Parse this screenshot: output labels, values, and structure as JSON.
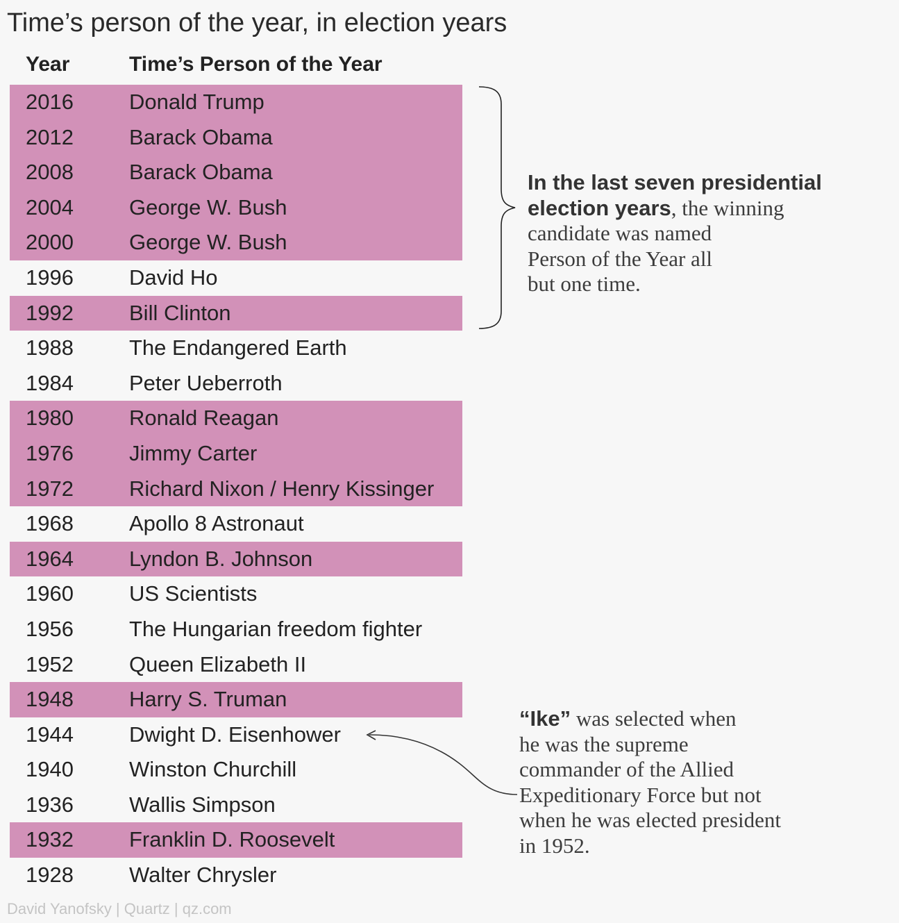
{
  "title": "Time’s person of the year, in election years",
  "source": "David Yanofsky | Quartz | qz.com",
  "colors": {
    "highlight": "#d291b8",
    "background": "#f7f7f7",
    "text": "#222222"
  },
  "chart_data": {
    "type": "table",
    "title": "Time’s person of the year, in election years",
    "columns": [
      "Year",
      "Time’s Person of the Year"
    ],
    "highlight_meaning": "winning candidate named Person of the Year",
    "rows": [
      {
        "year": "2016",
        "person": "Donald Trump",
        "highlighted": true
      },
      {
        "year": "2012",
        "person": "Barack Obama",
        "highlighted": true
      },
      {
        "year": "2008",
        "person": "Barack Obama",
        "highlighted": true
      },
      {
        "year": "2004",
        "person": "George W. Bush",
        "highlighted": true
      },
      {
        "year": "2000",
        "person": "George W. Bush",
        "highlighted": true
      },
      {
        "year": "1996",
        "person": "David Ho",
        "highlighted": false
      },
      {
        "year": "1992",
        "person": "Bill Clinton",
        "highlighted": true
      },
      {
        "year": "1988",
        "person": "The Endangered Earth",
        "highlighted": false
      },
      {
        "year": "1984",
        "person": "Peter Ueberroth",
        "highlighted": false
      },
      {
        "year": "1980",
        "person": "Ronald Reagan",
        "highlighted": true
      },
      {
        "year": "1976",
        "person": "Jimmy Carter",
        "highlighted": true
      },
      {
        "year": "1972",
        "person": "Richard Nixon / Henry Kissinger",
        "highlighted": true
      },
      {
        "year": "1968",
        "person": "Apollo 8 Astronaut",
        "highlighted": false
      },
      {
        "year": "1964",
        "person": "Lyndon B. Johnson",
        "highlighted": true
      },
      {
        "year": "1960",
        "person": "US Scientists",
        "highlighted": false
      },
      {
        "year": "1956",
        "person": "The Hungarian freedom fighter",
        "highlighted": false
      },
      {
        "year": "1952",
        "person": "Queen Elizabeth II",
        "highlighted": false
      },
      {
        "year": "1948",
        "person": "Harry S. Truman",
        "highlighted": true
      },
      {
        "year": "1944",
        "person": "Dwight D. Eisenhower",
        "highlighted": false
      },
      {
        "year": "1940",
        "person": "Winston Churchill",
        "highlighted": false
      },
      {
        "year": "1936",
        "person": "Wallis Simpson",
        "highlighted": false
      },
      {
        "year": "1932",
        "person": "Franklin D. Roosevelt",
        "highlighted": true
      },
      {
        "year": "1928",
        "person": "Walter Chrysler",
        "highlighted": false
      }
    ],
    "annotations": [
      {
        "bold": "In the last seven presidential election years",
        "text": ", the winning candidate was named Person of the Year all but one time.",
        "brace_covers": [
          "2016",
          "1992"
        ]
      },
      {
        "bold": "“Ike”",
        "text": " was selected when he was the supreme commander of the Allied Expeditionary Force but not when he was elected president in 1952.",
        "arrow_to": "1944"
      }
    ]
  }
}
